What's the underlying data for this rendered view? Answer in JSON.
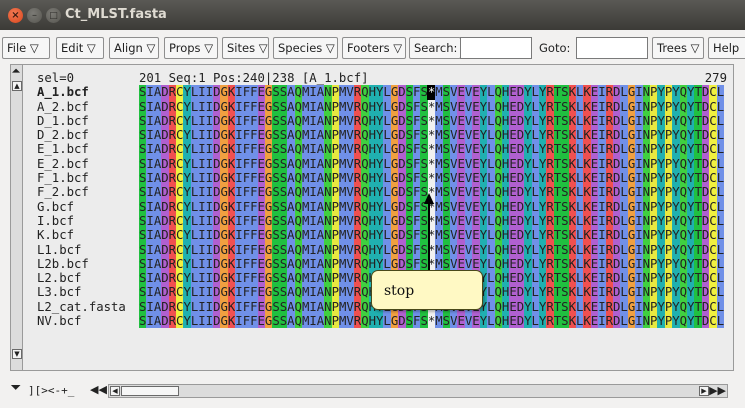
{
  "window": {
    "title": "Ct_MLST.fasta"
  },
  "menubar": {
    "file": "File ▽",
    "edit": "Edit ▽",
    "align": "Align ▽",
    "props": "Props ▽",
    "sites": "Sites ▽",
    "species": "Species ▽",
    "footers": "Footers ▽",
    "search_label": "Search:",
    "search_value": "",
    "goto_label": "Goto:",
    "goto_value": "",
    "trees": "Trees ▽",
    "help": "Help"
  },
  "status": {
    "sel": "sel=0",
    "info": "201   Seq:1 Pos:240|238 [A_1.bcf]",
    "length": "279"
  },
  "sequence_names": [
    "A_1.bcf",
    "A_2.bcf",
    "D_1.bcf",
    "D_2.bcf",
    "E_1.bcf",
    "E_2.bcf",
    "F_1.bcf",
    "F_2.bcf",
    "G.bcf",
    "I.bcf",
    "K.bcf",
    "L1.bcf",
    "L2b.bcf",
    "L2.bcf",
    "L3.bcf",
    "L2_cat.fasta",
    "NV.bcf"
  ],
  "sequence": "SIADRCYLIIDGKIFFEGSSAQMIANPMVRQHYLGDSFS*MSVEVEYLQHEDYLYRTSKLKEIRDLGINPYPYQYTDCL",
  "bottom_nav": "][><-+_",
  "callout": {
    "text": "stop"
  },
  "colors": {
    "S": "#20c040",
    "T": "#20c040",
    "C": "#f0f040",
    "I": "#7090e8",
    "A": "#7090e8",
    "L": "#7090e8",
    "M": "#7090e8",
    "F": "#7090e8",
    "W": "#7090e8",
    "V": "#7090e8",
    "D": "#b060d0",
    "E": "#b060d0",
    "R": "#f05050",
    "K": "#f05050",
    "Y": "#20b0b0",
    "H": "#20b0b0",
    "G": "#f0a040",
    "P": "#e8e840",
    "N": "#40d040",
    "Q": "#40d040",
    "*": "#f0f0f0"
  }
}
